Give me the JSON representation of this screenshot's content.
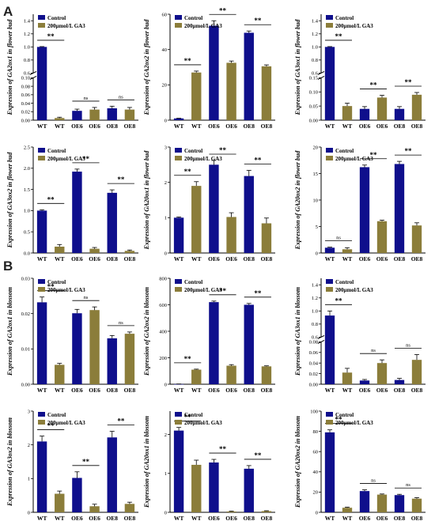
{
  "panel_labels": [
    "A",
    "B"
  ],
  "colors": {
    "control": "#0f0f8c",
    "treated": "#8b7d3a",
    "axis": "#000000"
  },
  "chart_data": [
    {
      "type": "bar",
      "panel": "A",
      "ylabel": "Expression of GA2ox1 in flower bud",
      "categories": [
        "WT",
        "WT",
        "OE6",
        "OE6",
        "OE8",
        "OE8"
      ],
      "values": [
        1.0,
        0.005,
        0.022,
        0.025,
        0.028,
        0.025
      ],
      "errors": [
        0.005,
        0.002,
        0.004,
        0.005,
        0.005,
        0.005
      ],
      "groups": [
        "control",
        "treated",
        "control",
        "treated",
        "control",
        "treated"
      ],
      "legend": [
        "Control",
        "200μmol/L GA3"
      ],
      "axis_break": {
        "low": [
          0,
          0.1
        ],
        "high": [
          0.6,
          1.5
        ]
      },
      "yticks": [
        0,
        0.02,
        0.04,
        0.06,
        0.08,
        0.1,
        0.6,
        0.8,
        1.0,
        1.2,
        1.4
      ],
      "ytick_labels": [
        "0.00",
        "0.02",
        "0.04",
        "0.06",
        "0.08",
        "0.10",
        "0.6",
        "0.8",
        "1.0",
        "1.2",
        "1.4"
      ],
      "sig": [
        {
          "a": 0,
          "b": 1,
          "text": "**"
        },
        {
          "a": 2,
          "b": 3,
          "text": "ns"
        },
        {
          "a": 4,
          "b": 5,
          "text": "ns"
        }
      ]
    },
    {
      "type": "bar",
      "ylabel": "Expression of GA2ox2 in flower bud",
      "categories": [
        "WT",
        "WT",
        "OE6",
        "OE6",
        "OE8",
        "OE8"
      ],
      "values": [
        1,
        27,
        53.5,
        32.5,
        49.5,
        30.5
      ],
      "errors": [
        0.1,
        0.8,
        2.8,
        1.0,
        1.0,
        0.8
      ],
      "groups": [
        "control",
        "treated",
        "control",
        "treated",
        "control",
        "treated"
      ],
      "legend": [
        "Control",
        "200μmol/L GA3"
      ],
      "ylim": [
        0,
        60
      ],
      "yticks": [
        0,
        20,
        40,
        60
      ],
      "ytick_labels": [
        "0",
        "20",
        "40",
        "60"
      ],
      "sig": [
        {
          "a": 0,
          "b": 1,
          "text": "**"
        },
        {
          "a": 2,
          "b": 3,
          "text": "**"
        },
        {
          "a": 4,
          "b": 5,
          "text": "**"
        }
      ]
    },
    {
      "type": "bar",
      "ylabel": "Expression of GA3ox1 in flower bud",
      "categories": [
        "WT",
        "WT",
        "OE6",
        "OE6",
        "OE8",
        "OE8"
      ],
      "values": [
        1.0,
        0.05,
        0.04,
        0.08,
        0.04,
        0.09
      ],
      "errors": [
        0.005,
        0.01,
        0.008,
        0.008,
        0.008,
        0.008
      ],
      "groups": [
        "control",
        "treated",
        "control",
        "treated",
        "control",
        "treated"
      ],
      "legend": [
        "Control",
        "200μmol/L GA3"
      ],
      "axis_break": {
        "low": [
          0,
          0.15
        ],
        "high": [
          0.6,
          1.5
        ]
      },
      "yticks": [
        0,
        0.05,
        0.1,
        0.15,
        0.6,
        0.8,
        1.0,
        1.2,
        1.4
      ],
      "ytick_labels": [
        "0.00",
        "0.05",
        "0.10",
        "0.15",
        "0.6",
        "0.8",
        "1.0",
        "1.2",
        "1.4"
      ],
      "sig": [
        {
          "a": 0,
          "b": 1,
          "text": "**"
        },
        {
          "a": 2,
          "b": 3,
          "text": "**"
        },
        {
          "a": 4,
          "b": 5,
          "text": "**"
        }
      ]
    },
    {
      "type": "bar",
      "ylabel": "Expression of GA3ox2 in flower bud",
      "categories": [
        "WT",
        "WT",
        "OE6",
        "OE6",
        "OE8",
        "OE8"
      ],
      "values": [
        1.0,
        0.15,
        1.92,
        0.1,
        1.42,
        0.05
      ],
      "errors": [
        0.02,
        0.05,
        0.06,
        0.03,
        0.07,
        0.02
      ],
      "groups": [
        "control",
        "treated",
        "control",
        "treated",
        "control",
        "treated"
      ],
      "legend": [
        "Control",
        "200μmol/L GA3"
      ],
      "ylim": [
        0,
        2.5
      ],
      "yticks": [
        0,
        0.5,
        1.0,
        1.5,
        2.0,
        2.5
      ],
      "ytick_labels": [
        "0.0",
        "0.5",
        "1.0",
        "1.5",
        "2.0",
        "2.5"
      ],
      "sig": [
        {
          "a": 0,
          "b": 1,
          "text": "**"
        },
        {
          "a": 2,
          "b": 3,
          "text": "**"
        },
        {
          "a": 4,
          "b": 5,
          "text": "**"
        }
      ]
    },
    {
      "type": "bar",
      "ylabel": "Expression of GA20ox1 in flower bud",
      "categories": [
        "WT",
        "WT",
        "OE6",
        "OE6",
        "OE8",
        "OE8"
      ],
      "values": [
        1.0,
        1.9,
        2.5,
        1.02,
        2.18,
        0.84
      ],
      "errors": [
        0.02,
        0.12,
        0.12,
        0.12,
        0.16,
        0.15
      ],
      "groups": [
        "control",
        "treated",
        "control",
        "treated",
        "control",
        "treated"
      ],
      "legend": [
        "Control",
        "200μmol/L GA3"
      ],
      "ylim": [
        0,
        3
      ],
      "yticks": [
        0,
        1,
        2,
        3
      ],
      "ytick_labels": [
        "0",
        "1",
        "2",
        "3"
      ],
      "sig": [
        {
          "a": 0,
          "b": 1,
          "text": "**"
        },
        {
          "a": 2,
          "b": 3,
          "text": "**"
        },
        {
          "a": 4,
          "b": 5,
          "text": "**"
        }
      ]
    },
    {
      "type": "bar",
      "ylabel": "Expression of GA20ox2 in flower bud",
      "categories": [
        "WT",
        "WT",
        "OE6",
        "OE6",
        "OE8",
        "OE8"
      ],
      "values": [
        1.0,
        0.7,
        16.2,
        6.0,
        16.8,
        5.2
      ],
      "errors": [
        0.1,
        0.3,
        0.4,
        0.2,
        0.5,
        0.5
      ],
      "groups": [
        "control",
        "treated",
        "control",
        "treated",
        "control",
        "treated"
      ],
      "legend": [
        "Control",
        "200μmol/L GA3"
      ],
      "ylim": [
        0,
        20
      ],
      "yticks": [
        0,
        5,
        10,
        15,
        20
      ],
      "ytick_labels": [
        "0",
        "5",
        "10",
        "15",
        "20"
      ],
      "sig": [
        {
          "a": 0,
          "b": 1,
          "text": "ns"
        },
        {
          "a": 2,
          "b": 3,
          "text": "**"
        },
        {
          "a": 4,
          "b": 5,
          "text": "**"
        }
      ]
    },
    {
      "type": "bar",
      "panel": "B",
      "ylabel": "Expression of GA2ox1 in blossom",
      "categories": [
        "WT",
        "WT",
        "OE6",
        "OE6",
        "OE8",
        "OE8"
      ],
      "values": [
        0.0232,
        0.0055,
        0.0201,
        0.021,
        0.013,
        0.0143
      ],
      "errors": [
        0.0015,
        0.0004,
        0.0011,
        0.0009,
        0.0008,
        0.0005
      ],
      "groups": [
        "control",
        "treated",
        "control",
        "treated",
        "control",
        "treated"
      ],
      "legend": [
        "Control",
        "200μmol/L GA3"
      ],
      "ylim": [
        0,
        0.03
      ],
      "yticks": [
        0,
        0.01,
        0.02,
        0.03
      ],
      "ytick_labels": [
        "0.00",
        "0.01",
        "0.02",
        "0.03"
      ],
      "sig": [
        {
          "a": 0,
          "b": 1,
          "text": "**"
        },
        {
          "a": 2,
          "b": 3,
          "text": "ns"
        },
        {
          "a": 4,
          "b": 5,
          "text": "ns"
        }
      ]
    },
    {
      "type": "bar",
      "ylabel": "Expression of GA2ox2 in blossom",
      "categories": [
        "WT",
        "WT",
        "OE6",
        "OE6",
        "OE8",
        "OE8"
      ],
      "values": [
        1,
        110,
        620,
        140,
        600,
        135
      ],
      "errors": [
        1,
        4,
        8,
        8,
        10,
        4
      ],
      "groups": [
        "control",
        "treated",
        "control",
        "treated",
        "control",
        "treated"
      ],
      "legend": [
        "Control",
        "200μmol/L GA3"
      ],
      "ylim": [
        0,
        800
      ],
      "yticks": [
        0,
        200,
        400,
        600,
        800
      ],
      "ytick_labels": [
        "0",
        "200",
        "400",
        "600",
        "800"
      ],
      "sig": [
        {
          "a": 0,
          "b": 1,
          "text": "**"
        },
        {
          "a": 2,
          "b": 3,
          "text": "**"
        },
        {
          "a": 4,
          "b": 5,
          "text": "**"
        }
      ]
    },
    {
      "type": "bar",
      "ylabel": "Expression of GA3ox1 in blossom",
      "categories": [
        "WT",
        "WT",
        "OE6",
        "OE6",
        "OE8",
        "OE8"
      ],
      "values": [
        0.93,
        0.022,
        0.007,
        0.04,
        0.008,
        0.046
      ],
      "errors": [
        0.07,
        0.008,
        0.002,
        0.006,
        0.003,
        0.01
      ],
      "groups": [
        "control",
        "treated",
        "control",
        "treated",
        "control",
        "treated"
      ],
      "legend": [
        "Control",
        "200μmol/L GA3"
      ],
      "axis_break": {
        "low": [
          0,
          0.08
        ],
        "high": [
          0.6,
          1.5
        ]
      },
      "yticks": [
        0,
        0.02,
        0.04,
        0.06,
        0.08,
        0.6,
        0.8,
        1.0,
        1.2,
        1.4
      ],
      "ytick_labels": [
        "0.00",
        "0.02",
        "0.04",
        "0.06",
        "0.08",
        "0.6",
        "0.8",
        "1.0",
        "1.2",
        "1.4"
      ],
      "sig": [
        {
          "a": 0,
          "b": 1,
          "text": "**"
        },
        {
          "a": 2,
          "b": 3,
          "text": "ns"
        },
        {
          "a": 4,
          "b": 5,
          "text": "ns"
        }
      ]
    },
    {
      "type": "bar",
      "ylabel": "Expression of GA3ox2 in blossom",
      "categories": [
        "WT",
        "WT",
        "OE6",
        "OE6",
        "OE8",
        "OE8"
      ],
      "values": [
        2.1,
        0.55,
        1.02,
        0.18,
        2.22,
        0.25
      ],
      "errors": [
        0.16,
        0.08,
        0.18,
        0.06,
        0.18,
        0.05
      ],
      "groups": [
        "control",
        "treated",
        "control",
        "treated",
        "control",
        "treated"
      ],
      "legend": [
        "Control",
        "200μmol/L GA3"
      ],
      "ylim": [
        0,
        3
      ],
      "yticks": [
        0,
        1,
        2,
        3
      ],
      "ytick_labels": [
        "0",
        "1",
        "2",
        "3"
      ],
      "sig": [
        {
          "a": 0,
          "b": 1,
          "text": "**"
        },
        {
          "a": 2,
          "b": 3,
          "text": "**"
        },
        {
          "a": 4,
          "b": 5,
          "text": "**"
        }
      ]
    },
    {
      "type": "bar",
      "ylabel": "Expression of GA20ox1 in blossom",
      "categories": [
        "WT",
        "WT",
        "OE6",
        "OE6",
        "OE8",
        "OE8"
      ],
      "values": [
        2.1,
        1.22,
        1.28,
        0.02,
        1.12,
        0.03
      ],
      "errors": [
        0.08,
        0.12,
        0.08,
        0.01,
        0.08,
        0.01
      ],
      "groups": [
        "control",
        "treated",
        "control",
        "treated",
        "control",
        "treated"
      ],
      "legend": [
        "Control",
        "200μmol/L GA3"
      ],
      "ylim": [
        0,
        2.6
      ],
      "yticks": [
        0,
        1,
        2
      ],
      "ytick_labels": [
        "0",
        "1",
        "2"
      ],
      "sig": [
        {
          "a": 0,
          "b": 1,
          "text": "**"
        },
        {
          "a": 2,
          "b": 3,
          "text": "**"
        },
        {
          "a": 4,
          "b": 5,
          "text": "**"
        }
      ]
    },
    {
      "type": "bar",
      "ylabel": "Expression of GA20ox2 in blossom",
      "categories": [
        "WT",
        "WT",
        "OE6",
        "OE6",
        "OE8",
        "OE8"
      ],
      "values": [
        79,
        4.5,
        21,
        17.5,
        17,
        13.5
      ],
      "errors": [
        2.5,
        0.6,
        1.2,
        0.6,
        0.8,
        1.0
      ],
      "groups": [
        "control",
        "treated",
        "control",
        "treated",
        "control",
        "treated"
      ],
      "legend": [
        "Control",
        "200μmol/L GA3"
      ],
      "ylim": [
        0,
        100
      ],
      "yticks": [
        0,
        20,
        40,
        60,
        80,
        100
      ],
      "ytick_labels": [
        "0",
        "20",
        "40",
        "60",
        "80",
        "100"
      ],
      "sig": [
        {
          "a": 0,
          "b": 1,
          "text": "**"
        },
        {
          "a": 2,
          "b": 3,
          "text": "ns"
        },
        {
          "a": 4,
          "b": 5,
          "text": "ns"
        }
      ]
    }
  ]
}
